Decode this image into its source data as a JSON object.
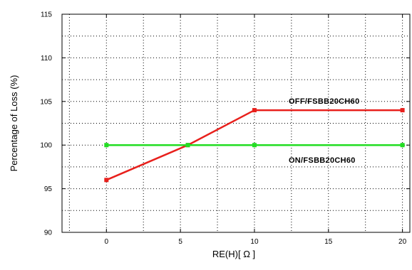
{
  "chart_data": {
    "type": "line",
    "xlabel": "RE(H)[ Ω ]",
    "ylabel": "Percentage of Loss (%)",
    "xlim": [
      -3,
      20.5
    ],
    "ylim": [
      90,
      115
    ],
    "xticks": [
      0,
      5,
      10,
      15,
      20
    ],
    "yticks": [
      90,
      95,
      100,
      105,
      110,
      115
    ],
    "grid": true,
    "series": [
      {
        "name": "OFF/FSBB20CH60",
        "color": "#e8201c",
        "x": [
          0,
          5.5,
          10,
          20
        ],
        "y": [
          96,
          100,
          104,
          104
        ],
        "label_anchor": [
          10,
          104
        ]
      },
      {
        "name": "ON/FSBB20CH60",
        "color": "#22dd22",
        "x": [
          0,
          5.5,
          10,
          20
        ],
        "y": [
          100,
          100,
          100,
          100
        ],
        "label_anchor": [
          10,
          100
        ]
      }
    ]
  }
}
